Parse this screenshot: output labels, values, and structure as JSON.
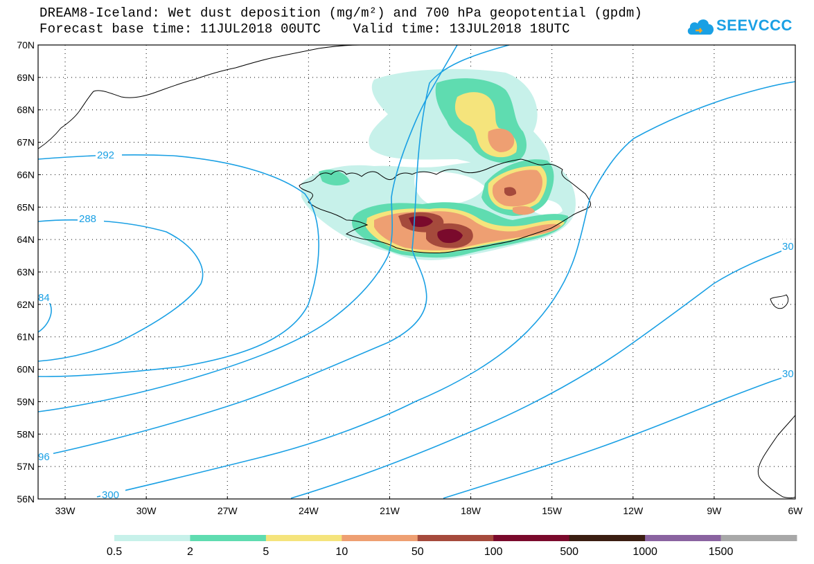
{
  "header": {
    "title_line1": "DREAM8-Iceland: Wet dust deposition (mg/m²) and 700 hPa geopotential (gpdm)",
    "title_line2": "Forecast base time: 11JUL2018 00UTC    Valid time: 13JUL2018 18UTC"
  },
  "logo": {
    "text": "SEEVCCC",
    "icon": "cloud-icon",
    "color": "#1aa0e4"
  },
  "map": {
    "lat_labels": [
      "70N",
      "69N",
      "68N",
      "67N",
      "66N",
      "65N",
      "64N",
      "63N",
      "62N",
      "61N",
      "60N",
      "59N",
      "58N",
      "57N",
      "56N"
    ],
    "lon_labels": [
      "33W",
      "30W",
      "27W",
      "24W",
      "21W",
      "18W",
      "15W",
      "12W",
      "9W",
      "6W"
    ],
    "contour_color": "#1aa0e4",
    "contour_labels": [
      "292",
      "288",
      "84",
      "96",
      "300",
      "30",
      "30"
    ]
  },
  "colorbar": {
    "colors": [
      "#c7f1ea",
      "#5fdcb0",
      "#f5e47c",
      "#ee9f72",
      "#a54a3c",
      "#7a0a2c",
      "#3b1e12",
      "#8a63a0",
      "#a8a8a8"
    ],
    "labels": [
      "0.5",
      "2",
      "5",
      "10",
      "50",
      "100",
      "500",
      "1000",
      "1500"
    ]
  }
}
